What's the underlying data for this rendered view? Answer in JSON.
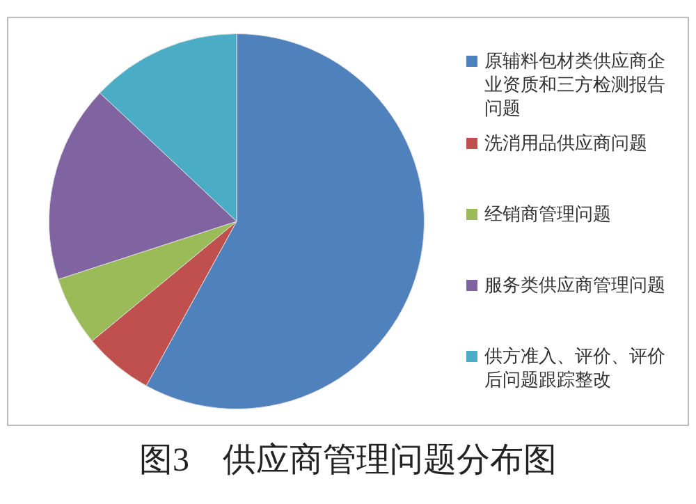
{
  "chart_data": {
    "type": "pie",
    "title": "图3　供应商管理问题分布图",
    "categories": [
      "原辅料包材类供应商企业资质和三方检测报告问题",
      "洗消用品供应商问题",
      "经销商管理问题",
      "服务类供应商管理问题",
      "供方准入、评价、评价后问题跟踪整改"
    ],
    "values": [
      58,
      6,
      6,
      17,
      13
    ],
    "colors": [
      "#4f81bd",
      "#c0504d",
      "#9bbb59",
      "#8064a2",
      "#4bacc6"
    ],
    "legend": "right"
  }
}
